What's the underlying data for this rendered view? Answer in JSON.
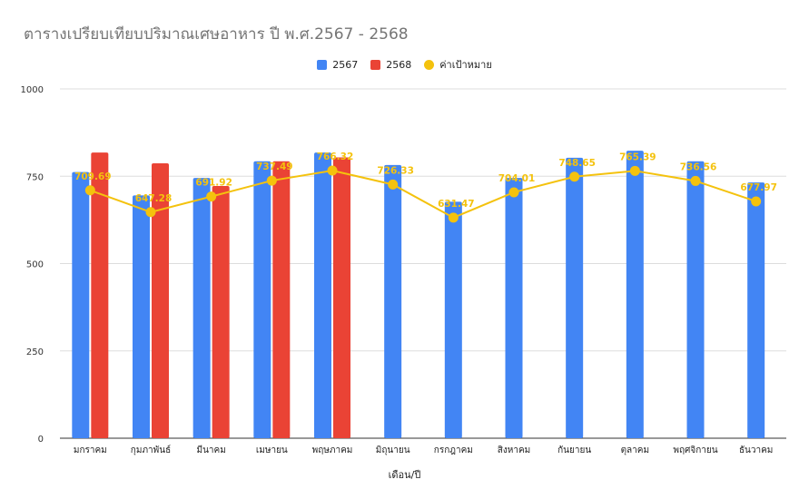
{
  "chart_data": {
    "type": "bar",
    "title": "ตารางเปรียบเทียบปริมาณเศษอาหาร ปี พ.ศ.2567 - 2568",
    "xlabel": "เดือน/ปี",
    "ylabel": "",
    "ylim": [
      0,
      1000
    ],
    "yticks": [
      "0",
      "250",
      "500",
      "750",
      "1000"
    ],
    "categories": [
      "มกราคม",
      "กุมภาพันธ์",
      "มีนาคม",
      "เมษายน",
      "พฤษภาคม",
      "มิถุนายน",
      "กรกฎาคม",
      "สิงหาคม",
      "กันยายน",
      "ตุลาคม",
      "พฤศจิกายน",
      "ธันวาคม"
    ],
    "series": [
      {
        "name": "2567",
        "type": "bar",
        "color": "#4285f4",
        "values": [
          762,
          695,
          745,
          793,
          818,
          782,
          677,
          745,
          803,
          823,
          793,
          732
        ]
      },
      {
        "name": "2568",
        "type": "bar",
        "color": "#ea4335",
        "values": [
          818,
          787,
          722,
          793,
          804,
          null,
          null,
          null,
          null,
          null,
          null,
          null
        ]
      },
      {
        "name": "ค่าเป้าหมาย",
        "type": "line",
        "color": "#f4c20d",
        "values": [
          709.69,
          647.28,
          691.92,
          737.49,
          766.32,
          726.33,
          631.47,
          704.01,
          748.65,
          765.39,
          736.56,
          677.97
        ],
        "labels": [
          "709.69",
          "647.28",
          "691.92",
          "737.49",
          "766.32",
          "726.33",
          "631.47",
          "704.01",
          "748.65",
          "765.39",
          "736.56",
          "677.97"
        ]
      }
    ],
    "grid": true,
    "legend": "top-center"
  }
}
